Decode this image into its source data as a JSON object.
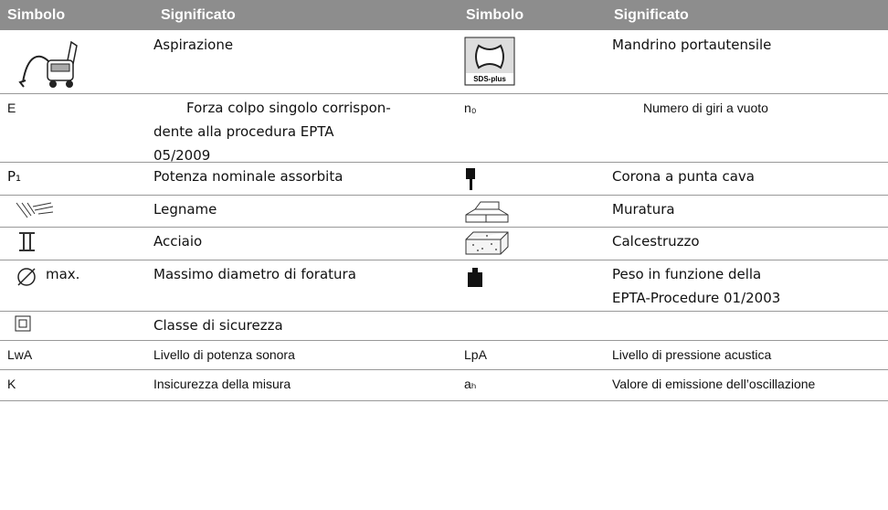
{
  "table": {
    "headers": [
      "Simbolo",
      "Significato",
      "Simbolo",
      "Significato"
    ],
    "rows": [
      {
        "meaning_1": "Aspirazione",
        "icon_2_label": "SDS-plus",
        "meaning_2": "Mandrino portautensile"
      },
      {
        "symbol_1": "E",
        "meaning_1": "Forza colpo singolo corrispon-\ndente alla procedura EPTA\n05/2009",
        "symbol_2": "n₀",
        "meaning_2": "Numero di giri a vuoto"
      },
      {
        "symbol_1": "P₁",
        "meaning_1": "Potenza nominale assorbita",
        "meaning_2": "Corona a punta cava"
      },
      {
        "meaning_1": "Legname",
        "meaning_2": "Muratura"
      },
      {
        "meaning_1": "Acciaio",
        "meaning_2": "Calcestruzzo"
      },
      {
        "symbol_1": "max.",
        "meaning_1": "Massimo diametro di foratura",
        "meaning_2": "Peso in funzione della\nEPTA-Procedure 01/2003"
      },
      {
        "meaning_1": "Classe di sicurezza"
      },
      {
        "symbol_1": "LwA",
        "meaning_1": "Livello di potenza sonora",
        "symbol_2": "LpA",
        "meaning_2": "Livello di pressione acustica"
      },
      {
        "symbol_1": "K",
        "meaning_1": "Insicurezza della misura",
        "symbol_2": "aₕ",
        "meaning_2": "Valore di emissione dell’oscillazione"
      }
    ]
  }
}
